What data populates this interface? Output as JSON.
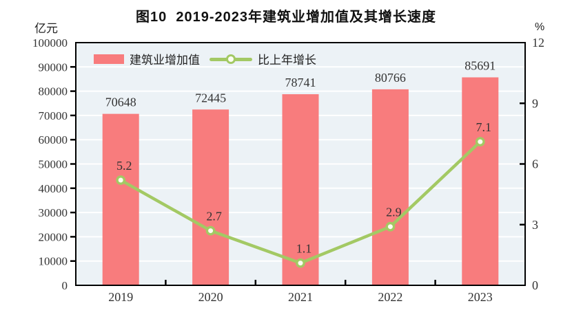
{
  "chart_data": {
    "type": "bar",
    "title": "图10  2019-2023年建筑业增加值及其增长速度",
    "categories": [
      "2019",
      "2020",
      "2021",
      "2022",
      "2023"
    ],
    "series": [
      {
        "name": "建筑业增加值",
        "type": "bar",
        "axis": "left",
        "values": [
          70648,
          72445,
          78741,
          80766,
          85691
        ],
        "labels": [
          "70648",
          "72445",
          "78741",
          "80766",
          "85691"
        ],
        "color": "#F87C7D"
      },
      {
        "name": "比上年增长",
        "type": "line",
        "axis": "right",
        "values": [
          5.2,
          2.7,
          1.1,
          2.9,
          7.1
        ],
        "labels": [
          "5.2",
          "2.7",
          "1.1",
          "2.9",
          "7.1"
        ],
        "color": "#A3C964",
        "marker_fill": "#FDFDF2"
      }
    ],
    "left_axis": {
      "unit": "亿元",
      "min": 0,
      "max": 100000,
      "tick_step": 10000,
      "tick_labels": [
        "0",
        "10000",
        "20000",
        "30000",
        "40000",
        "50000",
        "60000",
        "70000",
        "80000",
        "90000",
        "100000"
      ]
    },
    "right_axis": {
      "unit": "%",
      "min": 0,
      "max": 12,
      "tick_step": 3,
      "tick_labels": [
        "0",
        "3",
        "6",
        "9",
        "12"
      ]
    },
    "legend_position": "top-left-inside",
    "grid": true,
    "colors": {
      "plot_bg": "#ECF2F6",
      "gridline": "#FFFFFF",
      "frame": "#000000",
      "text": "#333333"
    }
  }
}
